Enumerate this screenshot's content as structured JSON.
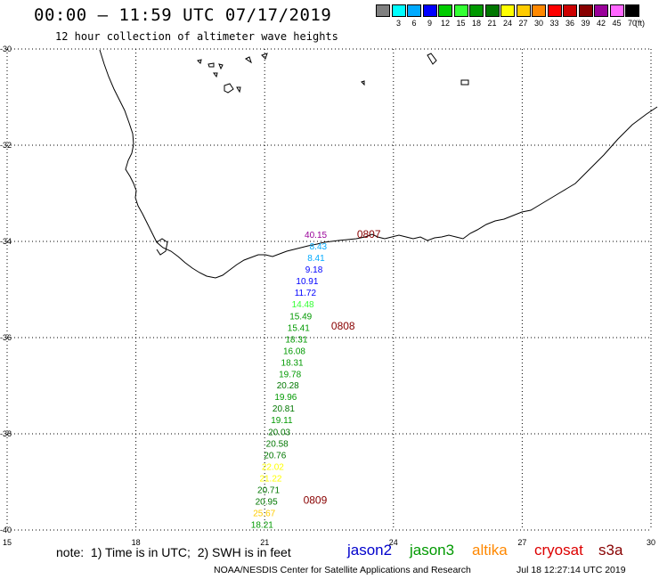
{
  "header": {
    "title": "00:00 – 11:59 UTC 07/17/2019",
    "subtitle": "12 hour collection of altimeter wave heights"
  },
  "legend": {
    "items": [
      {
        "label": "",
        "color": "#808080"
      },
      {
        "label": "3",
        "color": "#00ffff"
      },
      {
        "label": "6",
        "color": "#00aaff"
      },
      {
        "label": "9",
        "color": "#0000ff"
      },
      {
        "label": "12",
        "color": "#00cc00"
      },
      {
        "label": "15",
        "color": "#33ff33"
      },
      {
        "label": "18",
        "color": "#009900"
      },
      {
        "label": "21",
        "color": "#007700"
      },
      {
        "label": "24",
        "color": "#ffff00"
      },
      {
        "label": "27",
        "color": "#ffcc00"
      },
      {
        "label": "30",
        "color": "#ff8800"
      },
      {
        "label": "33",
        "color": "#ff0000"
      },
      {
        "label": "36",
        "color": "#cc0000"
      },
      {
        "label": "39",
        "color": "#880000"
      },
      {
        "label": "42",
        "color": "#990099"
      },
      {
        "label": "45",
        "color": "#ff66ff"
      },
      {
        "label": "70",
        "color": "#000000"
      }
    ],
    "unit": "(ft)"
  },
  "map": {
    "lon_ticks": [
      "15",
      "18",
      "21",
      "24",
      "27",
      "30"
    ],
    "lat_ticks": [
      "-30",
      "-32",
      "-34",
      "-36",
      "-38",
      "-40"
    ],
    "lon_range": [
      15,
      30
    ],
    "lat_range": [
      -30,
      -40
    ]
  },
  "track": {
    "points": [
      {
        "value": "40.15",
        "color": "#990099",
        "lon": 22.45,
        "lat": -33.93
      },
      {
        "value": "8.43",
        "color": "#00aaff",
        "lon": 22.45,
        "lat": -34.17
      },
      {
        "value": "8.41",
        "color": "#00aaff",
        "lon": 22.4,
        "lat": -34.41
      },
      {
        "value": "9.18",
        "color": "#0000ff",
        "lon": 22.35,
        "lat": -34.65
      },
      {
        "value": "10.91",
        "color": "#0000ff",
        "lon": 22.25,
        "lat": -34.89
      },
      {
        "value": "11.72",
        "color": "#0000ff",
        "lon": 22.2,
        "lat": -35.13
      },
      {
        "value": "14.48",
        "color": "#33ff33",
        "lon": 22.15,
        "lat": -35.37
      },
      {
        "value": "15.49",
        "color": "#009900",
        "lon": 22.1,
        "lat": -35.62
      },
      {
        "value": "15.41",
        "color": "#009900",
        "lon": 22.05,
        "lat": -35.86
      },
      {
        "value": "18.31",
        "color": "#009900",
        "lon": 22.0,
        "lat": -36.1
      },
      {
        "value": "16.08",
        "color": "#009900",
        "lon": 21.95,
        "lat": -36.34
      },
      {
        "value": "18.31",
        "color": "#009900",
        "lon": 21.9,
        "lat": -36.58
      },
      {
        "value": "19.78",
        "color": "#009900",
        "lon": 21.85,
        "lat": -36.82
      },
      {
        "value": "20.28",
        "color": "#007700",
        "lon": 21.8,
        "lat": -37.06
      },
      {
        "value": "19.96",
        "color": "#009900",
        "lon": 21.75,
        "lat": -37.3
      },
      {
        "value": "20.81",
        "color": "#007700",
        "lon": 21.7,
        "lat": -37.54
      },
      {
        "value": "19.11",
        "color": "#009900",
        "lon": 21.65,
        "lat": -37.78
      },
      {
        "value": "20.03",
        "color": "#007700",
        "lon": 21.6,
        "lat": -38.03
      },
      {
        "value": "20.58",
        "color": "#007700",
        "lon": 21.55,
        "lat": -38.27
      },
      {
        "value": "20.76",
        "color": "#007700",
        "lon": 21.5,
        "lat": -38.51
      },
      {
        "value": "22.02",
        "color": "#ffff00",
        "lon": 21.45,
        "lat": -38.75
      },
      {
        "value": "21.22",
        "color": "#ffff00",
        "lon": 21.4,
        "lat": -38.99
      },
      {
        "value": "20.71",
        "color": "#007700",
        "lon": 21.35,
        "lat": -39.23
      },
      {
        "value": "20.95",
        "color": "#007700",
        "lon": 21.3,
        "lat": -39.47
      },
      {
        "value": "25.67",
        "color": "#ffcc00",
        "lon": 21.25,
        "lat": -39.71
      },
      {
        "value": "18.21",
        "color": "#009900",
        "lon": 21.2,
        "lat": -39.95
      }
    ],
    "time_labels": [
      {
        "text": "0807",
        "color": "#880000",
        "lon": 23.15,
        "lat": -33.93
      },
      {
        "text": "0808",
        "color": "#880000",
        "lon": 22.55,
        "lat": -35.83
      },
      {
        "text": "0809",
        "color": "#880000",
        "lon": 21.9,
        "lat": -39.45
      }
    ]
  },
  "footer": {
    "note": "note:  1) Time is in UTC;  2) SWH is in feet",
    "satellites": [
      {
        "name": "jason2",
        "color": "#0000cc"
      },
      {
        "name": "jason3",
        "color": "#009900"
      },
      {
        "name": "altika",
        "color": "#ff8800"
      },
      {
        "name": "cryosat",
        "color": "#dd0000"
      },
      {
        "name": "s3a",
        "color": "#880000"
      }
    ],
    "credit": "NOAA/NESDIS Center for Satellite Applications and Research",
    "timestamp": "Jul 18 12:27:14 UTC 2019"
  }
}
